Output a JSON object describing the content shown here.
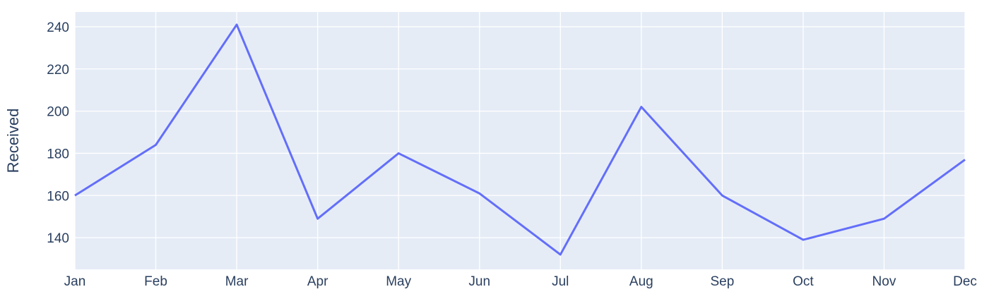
{
  "chart_data": {
    "type": "line",
    "title": "",
    "xlabel": "",
    "ylabel": "Received",
    "categories": [
      "Jan",
      "Feb",
      "Mar",
      "Apr",
      "May",
      "Jun",
      "Jul",
      "Aug",
      "Sep",
      "Oct",
      "Nov",
      "Dec"
    ],
    "series": [
      {
        "values": [
          160,
          184,
          241,
          149,
          180,
          161,
          132,
          202,
          160,
          139,
          149,
          177
        ]
      }
    ],
    "y_ticks": [
      140,
      160,
      180,
      200,
      220,
      240
    ],
    "ylim": [
      125,
      247
    ],
    "grid": true,
    "legend": "none",
    "colors": {
      "plot_background": "#e5ecf6",
      "grid": "#ffffff",
      "line": "#636efa",
      "text": "#2a3f5f"
    }
  }
}
